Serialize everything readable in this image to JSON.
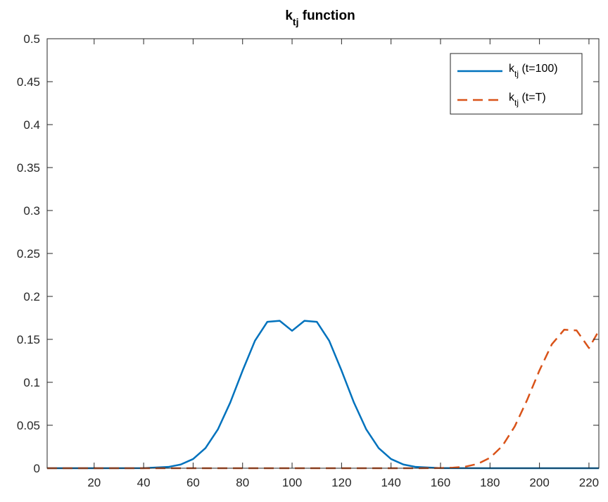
{
  "chart_data": {
    "type": "line",
    "title": {
      "base": "k",
      "subscript": "tj",
      "suffix": " function"
    },
    "xlabel": "",
    "ylabel": "",
    "xlim": [
      1,
      224
    ],
    "ylim": [
      0,
      0.5
    ],
    "xticks": [
      20,
      40,
      60,
      80,
      100,
      120,
      140,
      160,
      180,
      200,
      220
    ],
    "yticks": [
      0,
      0.05,
      0.1,
      0.15,
      0.2,
      0.25,
      0.3,
      0.35,
      0.4,
      0.45,
      0.5
    ],
    "grid": false,
    "legend_position": "top-right",
    "series": [
      {
        "name": "k_tj (t=100)",
        "legend": {
          "base": "k",
          "subscript": "tj",
          "suffix": " (t=100)"
        },
        "color": "#0072BD",
        "style": "solid",
        "x": [
          1,
          20,
          40,
          50,
          55,
          60,
          65,
          70,
          75,
          80,
          85,
          90,
          95,
          100,
          105,
          110,
          115,
          120,
          125,
          130,
          135,
          140,
          145,
          150,
          160,
          180,
          200,
          224
        ],
        "y": [
          0,
          0,
          0.0001,
          0.0015,
          0.0043,
          0.0107,
          0.0234,
          0.0451,
          0.0764,
          0.1136,
          0.1484,
          0.1704,
          0.1716,
          0.16,
          0.1716,
          0.1704,
          0.1484,
          0.1136,
          0.0764,
          0.0451,
          0.0234,
          0.0107,
          0.0043,
          0.0015,
          0.0001,
          0,
          0,
          0
        ]
      },
      {
        "name": "k_tj (t=T)",
        "legend": {
          "base": "k",
          "subscript": "tj",
          "suffix": " (t=T)"
        },
        "color": "#D95319",
        "style": "dashed",
        "x": [
          1,
          50,
          100,
          150,
          160,
          165,
          170,
          175,
          180,
          185,
          190,
          195,
          200,
          205,
          210,
          215,
          220,
          224
        ],
        "y": [
          0,
          0,
          0,
          0,
          0.0002,
          0.0006,
          0.0018,
          0.005,
          0.0121,
          0.0259,
          0.0486,
          0.0794,
          0.1139,
          0.1443,
          0.1613,
          0.1604,
          0.1399,
          0.16
        ]
      }
    ]
  },
  "colors": {
    "axis": "#262626",
    "background": "#ffffff",
    "series1": "#0072BD",
    "series2": "#D95319"
  }
}
